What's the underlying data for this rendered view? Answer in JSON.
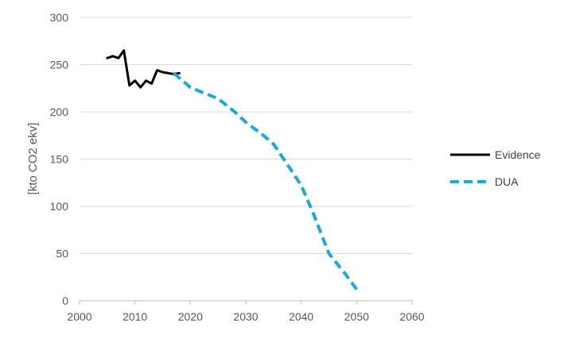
{
  "chart_data": {
    "type": "line",
    "title": "",
    "xlabel": "",
    "ylabel": "[kto CO2 ekv]",
    "xlim": [
      2000,
      2060
    ],
    "ylim": [
      0,
      300
    ],
    "x_ticks": [
      2000,
      2010,
      2020,
      2030,
      2040,
      2050,
      2060
    ],
    "y_ticks": [
      0,
      50,
      100,
      150,
      200,
      250,
      300
    ],
    "grid": "horizontal",
    "legend_position": "right",
    "series": [
      {
        "name": "Evidence",
        "color": "#000000",
        "style": "solid",
        "points": [
          [
            2005,
            257
          ],
          [
            2006,
            259
          ],
          [
            2007,
            257
          ],
          [
            2008,
            265
          ],
          [
            2009,
            228
          ],
          [
            2010,
            233
          ],
          [
            2011,
            226
          ],
          [
            2012,
            233
          ],
          [
            2013,
            230
          ],
          [
            2014,
            244
          ],
          [
            2015,
            242
          ],
          [
            2016,
            241
          ],
          [
            2017,
            240
          ],
          [
            2018,
            241
          ]
        ]
      },
      {
        "name": "DUA",
        "color": "#1aa8e0",
        "style": "dashed",
        "points": [
          [
            2017,
            241
          ],
          [
            2020,
            226
          ],
          [
            2022,
            221
          ],
          [
            2025,
            214
          ],
          [
            2028,
            200
          ],
          [
            2030,
            189
          ],
          [
            2033,
            176
          ],
          [
            2035,
            166
          ],
          [
            2038,
            140
          ],
          [
            2040,
            122
          ],
          [
            2042,
            95
          ],
          [
            2045,
            50
          ],
          [
            2048,
            28
          ],
          [
            2050,
            12
          ]
        ]
      }
    ]
  }
}
